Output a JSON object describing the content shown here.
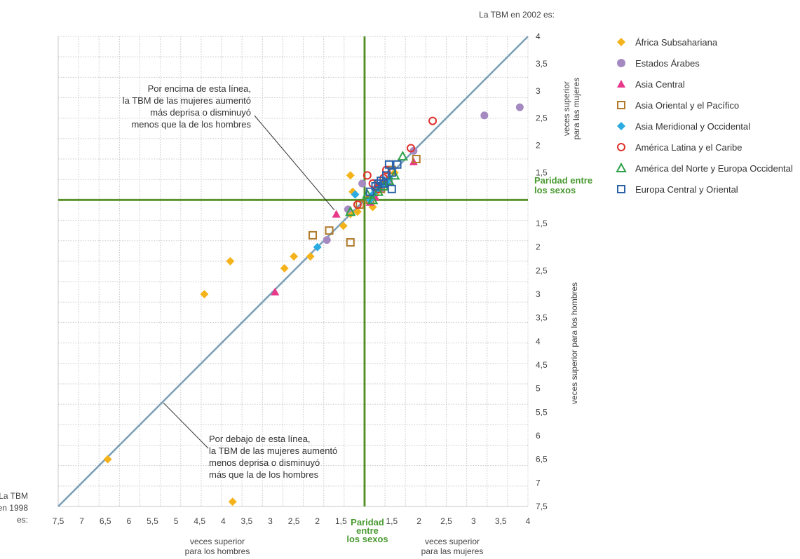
{
  "chart_data": {
    "type": "scatter",
    "title": "La TBM en 2002 es:",
    "x_corner_label": [
      "La TBM",
      "en 1998",
      "es:"
    ],
    "x_tick_labels": [
      "7,5",
      "7",
      "6,5",
      "6",
      "5,5",
      "5",
      "4,5",
      "4",
      "3,5",
      "3",
      "2,5",
      "2",
      "1,5",
      "1,5",
      "2",
      "2,5",
      "3",
      "3,5",
      "4"
    ],
    "x_tick_values": [
      -7.5,
      -7,
      -6.5,
      -6,
      -5.5,
      -5,
      -4.5,
      -4,
      -3.5,
      -3,
      -2.5,
      -2,
      -1.5,
      1.5,
      2,
      2.5,
      3,
      3.5,
      4
    ],
    "y_tick_labels": [
      "4",
      "3,5",
      "3",
      "2,5",
      "2",
      "1,5",
      "1,5",
      "2",
      "2,5",
      "3",
      "3,5",
      "4",
      "4,5",
      "5",
      "5,5",
      "6",
      "6,5",
      "7",
      "7,5"
    ],
    "y_tick_values": [
      4,
      3.5,
      3,
      2.5,
      2,
      1.5,
      -1.5,
      -2,
      -2.5,
      -3,
      -3.5,
      -4,
      -4.5,
      -5,
      -5.5,
      -6,
      -6.5,
      -7,
      -7.5
    ],
    "xlim": [
      -7.5,
      4
    ],
    "ylim": [
      -7.5,
      4
    ],
    "x_label_left": [
      "veces superior",
      "para los hombres"
    ],
    "x_label_right": [
      "veces superior",
      "para las mujeres"
    ],
    "y_label_top": [
      "veces superior",
      "para las mujeres"
    ],
    "y_label_bottom": "veces superior para los hombres",
    "parity_label_x": [
      "Paridad",
      "entre",
      "los sexos"
    ],
    "parity_label_y": [
      "Paridad entre",
      "los sexos"
    ],
    "note_above": [
      "Por encima de esta línea,",
      "la TBM de las mujeres aumentó",
      "más deprisa o disminuyó",
      "menos que la de los hombres"
    ],
    "note_below": [
      "Por debajo de esta línea,",
      "la TBM de las mujeres aumentó",
      "menos deprisa o disminuyó",
      "más que la de los hombres"
    ],
    "grid": true,
    "legend_position": "top-right",
    "series": [
      {
        "name": "África Subsahariana",
        "marker": "diamond",
        "color": "#f5b31b",
        "points": [
          [
            -6.45,
            -6.5
          ],
          [
            -3.8,
            -7.4
          ],
          [
            -4.4,
            -3.0
          ],
          [
            -3.85,
            -2.3
          ],
          [
            -2.5,
            -2.2
          ],
          [
            -2.7,
            -2.45
          ],
          [
            -2.15,
            -2.2
          ],
          [
            -1.45,
            -1.55
          ],
          [
            -1.3,
            1.45
          ],
          [
            -1.25,
            1.15
          ],
          [
            -1.3,
            -1.3
          ],
          [
            -1.15,
            -1.25
          ],
          [
            1.15,
            -1.15
          ],
          [
            1.2,
            1.1
          ],
          [
            1.35,
            1.3
          ],
          [
            1.55,
            1.5
          ],
          [
            1.3,
            1.2
          ]
        ]
      },
      {
        "name": "Estados Árabes",
        "marker": "circle",
        "color": "#a58ac2",
        "points": [
          [
            3.85,
            2.7
          ],
          [
            3.2,
            2.55
          ],
          [
            -1.8,
            -1.85
          ],
          [
            -1.35,
            -1.2
          ],
          [
            -1.05,
            1.3
          ],
          [
            1.3,
            1.2
          ],
          [
            1.45,
            1.35
          ],
          [
            1.9,
            1.9
          ]
        ]
      },
      {
        "name": "Asia Central",
        "marker": "triangle",
        "color": "#e8388a",
        "points": [
          [
            -2.9,
            -2.95
          ],
          [
            -1.6,
            -1.3
          ],
          [
            1.9,
            1.7
          ],
          [
            1.1,
            -1.05
          ],
          [
            1.2,
            1.05
          ]
        ]
      },
      {
        "name": "Asia Oriental y el Pacífico",
        "marker": "square-open",
        "color": "#b07a2a",
        "points": [
          [
            -2.1,
            -1.75
          ],
          [
            -1.75,
            -1.65
          ],
          [
            -1.3,
            -1.9
          ],
          [
            1.95,
            1.75
          ],
          [
            1.5,
            1.55
          ],
          [
            -1.1,
            -1.1
          ],
          [
            1.3,
            1.2
          ],
          [
            1.1,
            1.0
          ]
        ]
      },
      {
        "name": "Asia Meridional y Occidental",
        "marker": "diamond",
        "color": "#2aace2",
        "points": [
          [
            -2.0,
            -2.0
          ],
          [
            -1.2,
            1.1
          ],
          [
            1.15,
            1.1
          ],
          [
            1.3,
            1.25
          ],
          [
            1.2,
            1.15
          ],
          [
            1.4,
            1.3
          ],
          [
            1.45,
            1.4
          ],
          [
            1.1,
            1.0
          ]
        ]
      },
      {
        "name": "América Latina y el Caribe",
        "marker": "circle-open",
        "color": "#e0302a",
        "points": [
          [
            2.25,
            2.45
          ],
          [
            1.85,
            1.95
          ],
          [
            1.05,
            1.45
          ],
          [
            1.15,
            1.3
          ],
          [
            1.35,
            1.4
          ],
          [
            -1.15,
            -1.1
          ],
          [
            1.25,
            1.2
          ],
          [
            1.4,
            1.55
          ]
        ]
      },
      {
        "name": "América del Norte y Europa Occidental",
        "marker": "triangle-open",
        "color": "#2ca048",
        "points": [
          [
            1.7,
            1.8
          ],
          [
            1.15,
            -1.0
          ],
          [
            1.35,
            1.25
          ],
          [
            -1.3,
            -1.25
          ],
          [
            1.25,
            1.15
          ],
          [
            1.45,
            1.35
          ],
          [
            1.55,
            1.45
          ],
          [
            1.05,
            1.1
          ]
        ]
      },
      {
        "name": "Europa Central y Oriental",
        "marker": "square-open",
        "color": "#2a62a8",
        "points": [
          [
            1.45,
            1.65
          ],
          [
            1.6,
            1.65
          ],
          [
            1.5,
            1.2
          ],
          [
            1.3,
            1.35
          ],
          [
            1.2,
            1.25
          ],
          [
            1.4,
            1.45
          ],
          [
            1.35,
            1.3
          ],
          [
            1.1,
            1.15
          ],
          [
            1.25,
            1.3
          ],
          [
            1.5,
            1.5
          ]
        ]
      }
    ]
  }
}
